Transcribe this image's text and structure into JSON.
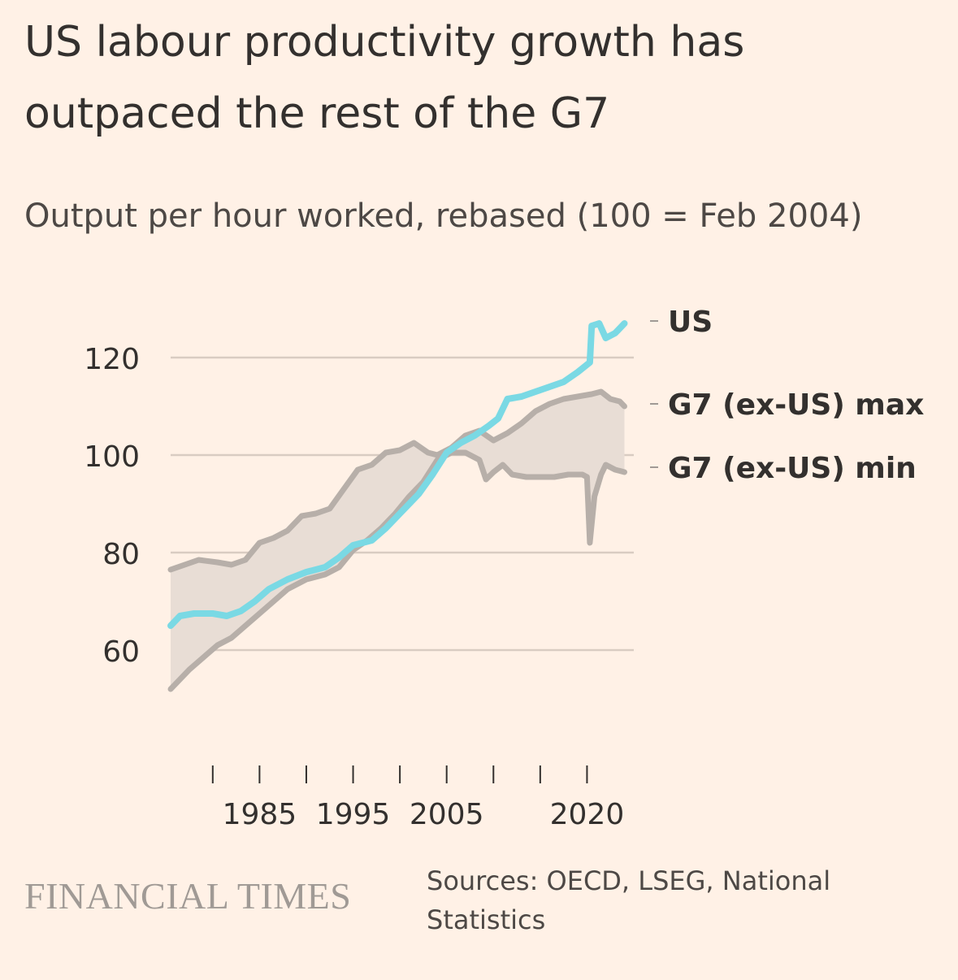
{
  "header": {
    "title": "US labour productivity growth has outpaced the rest of the G7",
    "subtitle": "Output per hour worked, rebased (100 = Feb 2004)"
  },
  "footer": {
    "brand": "FINANCIAL TIMES",
    "source": "Sources: OECD, LSEG, National Statistics"
  },
  "colors": {
    "background": "#fff1e6",
    "us_line": "#7ad9e4",
    "g7_lines": "#b7afa9",
    "band_fill": "#e8ddd5",
    "grid": "#d9ccc2",
    "text": "#33302e"
  },
  "chart_data": {
    "type": "line",
    "title": "US labour productivity growth has outpaced the rest of the G7",
    "subtitle": "Output per hour worked, rebased (100 = Feb 2004)",
    "xlabel": "",
    "ylabel": "",
    "xlim": [
      1975.5,
      2025
    ],
    "ylim": [
      50,
      130
    ],
    "yticks": [
      60,
      80,
      100,
      120
    ],
    "xticks": [
      1980,
      1985,
      1990,
      1995,
      2000,
      2005,
      2010,
      2015,
      2020
    ],
    "xtick_labels": [
      "",
      "1985",
      "",
      "1995",
      "",
      "2005",
      "",
      "",
      "2020"
    ],
    "grid": true,
    "legend_position": "right end labels",
    "shaded_band_between": [
      "G7 (ex-US) min",
      "G7 (ex-US) max"
    ],
    "series": [
      {
        "name": "US",
        "color": "#7ad9e4",
        "points": [
          [
            1975.5,
            65
          ],
          [
            1976.5,
            67
          ],
          [
            1978,
            67.5
          ],
          [
            1980,
            67.5
          ],
          [
            1981.5,
            67
          ],
          [
            1983,
            68
          ],
          [
            1984.5,
            70
          ],
          [
            1986,
            72.5
          ],
          [
            1988,
            74.5
          ],
          [
            1990,
            76
          ],
          [
            1992,
            77
          ],
          [
            1993.5,
            79
          ],
          [
            1995,
            81.5
          ],
          [
            1997,
            82.5
          ],
          [
            1998.5,
            85
          ],
          [
            2000,
            88
          ],
          [
            2002,
            92
          ],
          [
            2003.5,
            96
          ],
          [
            2005,
            100.5
          ],
          [
            2006.5,
            102.5
          ],
          [
            2008,
            104
          ],
          [
            2009.5,
            106
          ],
          [
            2010.5,
            107.5
          ],
          [
            2011.5,
            111.5
          ],
          [
            2013,
            112
          ],
          [
            2014.5,
            113
          ],
          [
            2016,
            114
          ],
          [
            2017.5,
            115
          ],
          [
            2019,
            117
          ],
          [
            2020.3,
            119
          ],
          [
            2020.5,
            126.5
          ],
          [
            2021.3,
            127
          ],
          [
            2022,
            124
          ],
          [
            2023,
            125
          ],
          [
            2024,
            127
          ]
        ]
      },
      {
        "name": "G7 (ex-US) max",
        "color": "#b7afa9",
        "points": [
          [
            1975.5,
            76.5
          ],
          [
            1977,
            77.5
          ],
          [
            1978.5,
            78.5
          ],
          [
            1980.5,
            78
          ],
          [
            1982,
            77.5
          ],
          [
            1983.5,
            78.5
          ],
          [
            1985,
            82
          ],
          [
            1986.5,
            83
          ],
          [
            1988,
            84.5
          ],
          [
            1989.5,
            87.5
          ],
          [
            1991,
            88
          ],
          [
            1992.5,
            89
          ],
          [
            1994,
            93
          ],
          [
            1995.5,
            97
          ],
          [
            1997,
            98
          ],
          [
            1998.5,
            100.5
          ],
          [
            2000,
            101
          ],
          [
            2001.5,
            102.5
          ],
          [
            2003,
            100.5
          ],
          [
            2004,
            100
          ],
          [
            2005.5,
            101.5
          ],
          [
            2007,
            104
          ],
          [
            2008.5,
            105
          ],
          [
            2010,
            103
          ],
          [
            2011.5,
            104.5
          ],
          [
            2013,
            106.5
          ],
          [
            2014.5,
            109
          ],
          [
            2016,
            110.5
          ],
          [
            2017.5,
            111.5
          ],
          [
            2019,
            112
          ],
          [
            2020.5,
            112.5
          ],
          [
            2021.5,
            113
          ],
          [
            2022.5,
            111.5
          ],
          [
            2023.5,
            111
          ],
          [
            2024,
            110
          ]
        ]
      },
      {
        "name": "G7 (ex-US) min",
        "color": "#b7afa9",
        "points": [
          [
            1975.5,
            52
          ],
          [
            1976.5,
            54
          ],
          [
            1977.5,
            56
          ],
          [
            1979,
            58.5
          ],
          [
            1980.5,
            61
          ],
          [
            1982,
            62.5
          ],
          [
            1983.5,
            65
          ],
          [
            1985,
            67.5
          ],
          [
            1986.5,
            70
          ],
          [
            1988,
            72.5
          ],
          [
            1990,
            74.5
          ],
          [
            1992,
            75.5
          ],
          [
            1993.5,
            77
          ],
          [
            1995,
            80.5
          ],
          [
            1996.5,
            82.5
          ],
          [
            1998,
            85
          ],
          [
            1999.5,
            88
          ],
          [
            2001,
            91.5
          ],
          [
            2002.5,
            94.5
          ],
          [
            2004,
            99
          ],
          [
            2005.5,
            100.5
          ],
          [
            2007,
            100.5
          ],
          [
            2008.5,
            99
          ],
          [
            2009.2,
            95
          ],
          [
            2010,
            96.5
          ],
          [
            2011,
            98
          ],
          [
            2012,
            96
          ],
          [
            2013.5,
            95.5
          ],
          [
            2015,
            95.5
          ],
          [
            2016.5,
            95.5
          ],
          [
            2018,
            96
          ],
          [
            2019.5,
            96
          ],
          [
            2020,
            95.5
          ],
          [
            2020.3,
            82
          ],
          [
            2020.8,
            91.5
          ],
          [
            2021.5,
            96
          ],
          [
            2022,
            98
          ],
          [
            2023,
            97
          ],
          [
            2024,
            96.5
          ]
        ]
      }
    ]
  }
}
